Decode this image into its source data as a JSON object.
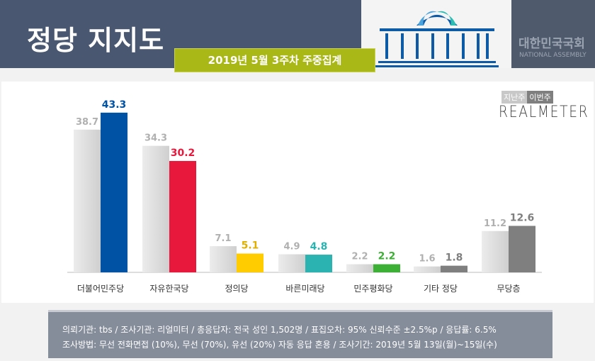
{
  "header": {
    "title": "정당 지지도",
    "subtitle": "2019년 5월 3주차 주중집계",
    "assembly_kr": "대한민국국회",
    "assembly_en": "NATIONAL ASSEMBLY"
  },
  "legend": {
    "prev": "지난주",
    "curr": "이번주",
    "brand": "REALMETER"
  },
  "chart_data": {
    "type": "bar",
    "categories": [
      "더불어민주당",
      "자유한국당",
      "정의당",
      "바른미래당",
      "민주평화당",
      "기타 정당",
      "무당층"
    ],
    "series": [
      {
        "name": "지난주",
        "values": [
          38.7,
          34.3,
          7.1,
          4.9,
          2.2,
          1.6,
          11.2
        ]
      },
      {
        "name": "이번주",
        "values": [
          43.3,
          30.2,
          5.1,
          4.8,
          2.2,
          1.8,
          12.6
        ]
      }
    ],
    "colors": [
      "#0052a5",
      "#e8173c",
      "#ffcc00",
      "#2ab3b0",
      "#3cb034",
      "#7f7f7f",
      "#7f7f7f"
    ],
    "label_colors": [
      "#0052a5",
      "#e8173c",
      "#e0b000",
      "#2ab3b0",
      "#3cb034",
      "#7f7f7f",
      "#7f7f7f"
    ],
    "prev_color": "#d9d9d9",
    "ylim": [
      0,
      45
    ],
    "grid": false,
    "legend": "top-right"
  },
  "footer": {
    "line1": "의뢰기관:  tbs  /  조사기관:  리얼미터  /  총응답자:  전국 성인 1,502명  /  표집오차:  95% 신뢰수준 ±2.5%p  /  응답률:  6.5%",
    "line2": "조사방법:  무선 전화면접 (10%), 무선 (70%), 유선 (20%)  자동 응답 혼용  /  조사기간:  2019년 5월 13일(월)~15일(수)"
  }
}
